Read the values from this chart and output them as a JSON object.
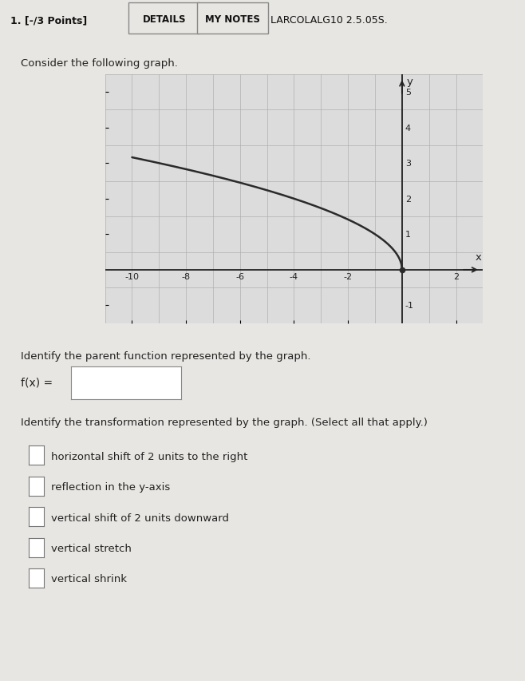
{
  "title_line1": "1. [-/3 Points]",
  "title_details": "DETAILS",
  "title_notes": "MY NOTES",
  "title_course": "LARCOLALG10 2.5.05S.",
  "problem_text": "Consider the following graph.",
  "x_min": -11,
  "x_max": 3,
  "y_min": -1.5,
  "y_max": 5.5,
  "x_ticks": [
    -10,
    -8,
    -6,
    -4,
    -2,
    2
  ],
  "y_ticks": [
    -1,
    1,
    2,
    3,
    4,
    5
  ],
  "curve_color": "#2a2a2a",
  "curve_linewidth": 1.8,
  "grid_color": "#b0b0b0",
  "grid_linewidth": 0.5,
  "axis_color": "#222222",
  "background_color": "#ebebeb",
  "graph_bg_color": "#dcdcdc",
  "identify_parent_text": "Identify the parent function represented by the graph.",
  "fx_label": "f(x) =",
  "transformation_text": "Identify the transformation represented by the graph. (Select all that apply.)",
  "checkboxes": [
    "horizontal shift of 2 units to the right",
    "reflection in the y-axis",
    "vertical shift of 2 units downward",
    "vertical stretch",
    "vertical shrink"
  ],
  "header_bg": "#d8d6d2",
  "header_text_color": "#111111",
  "page_bg": "#e8e6e2"
}
